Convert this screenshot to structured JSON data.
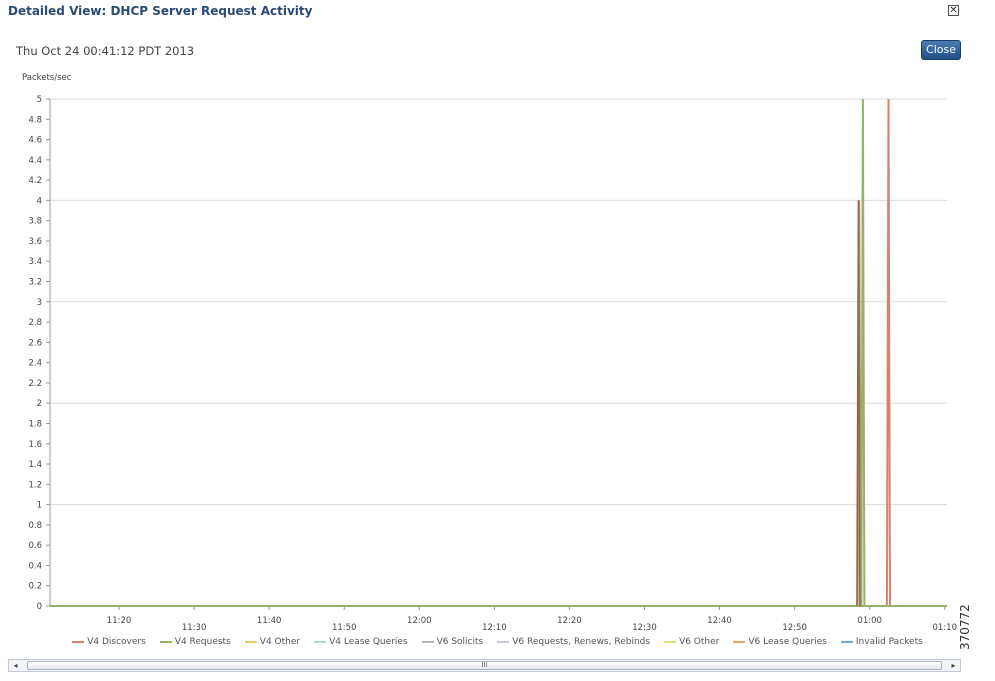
{
  "window": {
    "title": "Detailed View: DHCP Server Request Activity",
    "close_icon": "close-icon",
    "timestamp": "Thu Oct 24 00:41:12 PDT 2013",
    "close_button_label": "Close"
  },
  "figure_id": "370772",
  "scrollbar": {
    "left_arrow": "◂",
    "right_arrow": "▸",
    "thumb_grip": "III"
  },
  "chart_data": {
    "type": "line",
    "ylabel": "Packets/sec",
    "ylim": [
      0,
      5
    ],
    "y_ticks": [
      "0",
      "0.2",
      "0.4",
      "0.6",
      "0.8",
      "1",
      "1.2",
      "1.4",
      "1.6",
      "1.8",
      "2",
      "2.2",
      "2.4",
      "2.6",
      "2.8",
      "3",
      "3.2",
      "3.4",
      "3.6",
      "3.8",
      "4",
      "4.2",
      "4.4",
      "4.6",
      "4.8",
      "5"
    ],
    "x_ticks": [
      "11:20",
      "11:30",
      "11:40",
      "11:50",
      "12:00",
      "12:10",
      "12:20",
      "12:30",
      "12:40",
      "12:50",
      "01:00",
      "01:10"
    ],
    "x_minutes": [
      0,
      10,
      20,
      30,
      40,
      50,
      60,
      70,
      80,
      90,
      100,
      110
    ],
    "xlim_minutes": [
      -9.2,
      110.3
    ],
    "grid": "horizontal at integer values",
    "legend_position": "bottom",
    "series": [
      {
        "name": "V4 Discovers",
        "color": "#d9826b",
        "x": [
          -9.2,
          98.4,
          98.6,
          98.8,
          102.3,
          102.5,
          102.7,
          110.3
        ],
        "y": [
          0,
          0,
          4,
          0,
          0,
          5,
          0,
          0
        ]
      },
      {
        "name": "V4 Requests",
        "color": "#93b26a",
        "x": [
          -9.2,
          98.9,
          99.1,
          99.3,
          110.3
        ],
        "y": [
          0,
          0,
          5,
          0,
          0
        ]
      },
      {
        "name": "V4 Other",
        "color": "#f2c867",
        "x": [],
        "y": []
      },
      {
        "name": "V4 Lease Queries",
        "color": "#aedbd6",
        "x": [],
        "y": []
      },
      {
        "name": "V6 Solicits",
        "color": "#b5b5b5",
        "x": [],
        "y": []
      },
      {
        "name": "V6 Requests, Renews, Rebinds",
        "color": "#c8c8d6",
        "x": [],
        "y": []
      },
      {
        "name": "V6 Other",
        "color": "#e2e07a",
        "x": [],
        "y": []
      },
      {
        "name": "V6 Lease Queries",
        "color": "#e7a66b",
        "x": [],
        "y": []
      },
      {
        "name": "Invalid Packets",
        "color": "#6baed6",
        "x": [],
        "y": []
      }
    ],
    "overlay": {
      "color": "#8a6a4a",
      "x": [
        98.3,
        98.5,
        98.7
      ],
      "y": [
        0,
        4,
        0
      ]
    }
  }
}
